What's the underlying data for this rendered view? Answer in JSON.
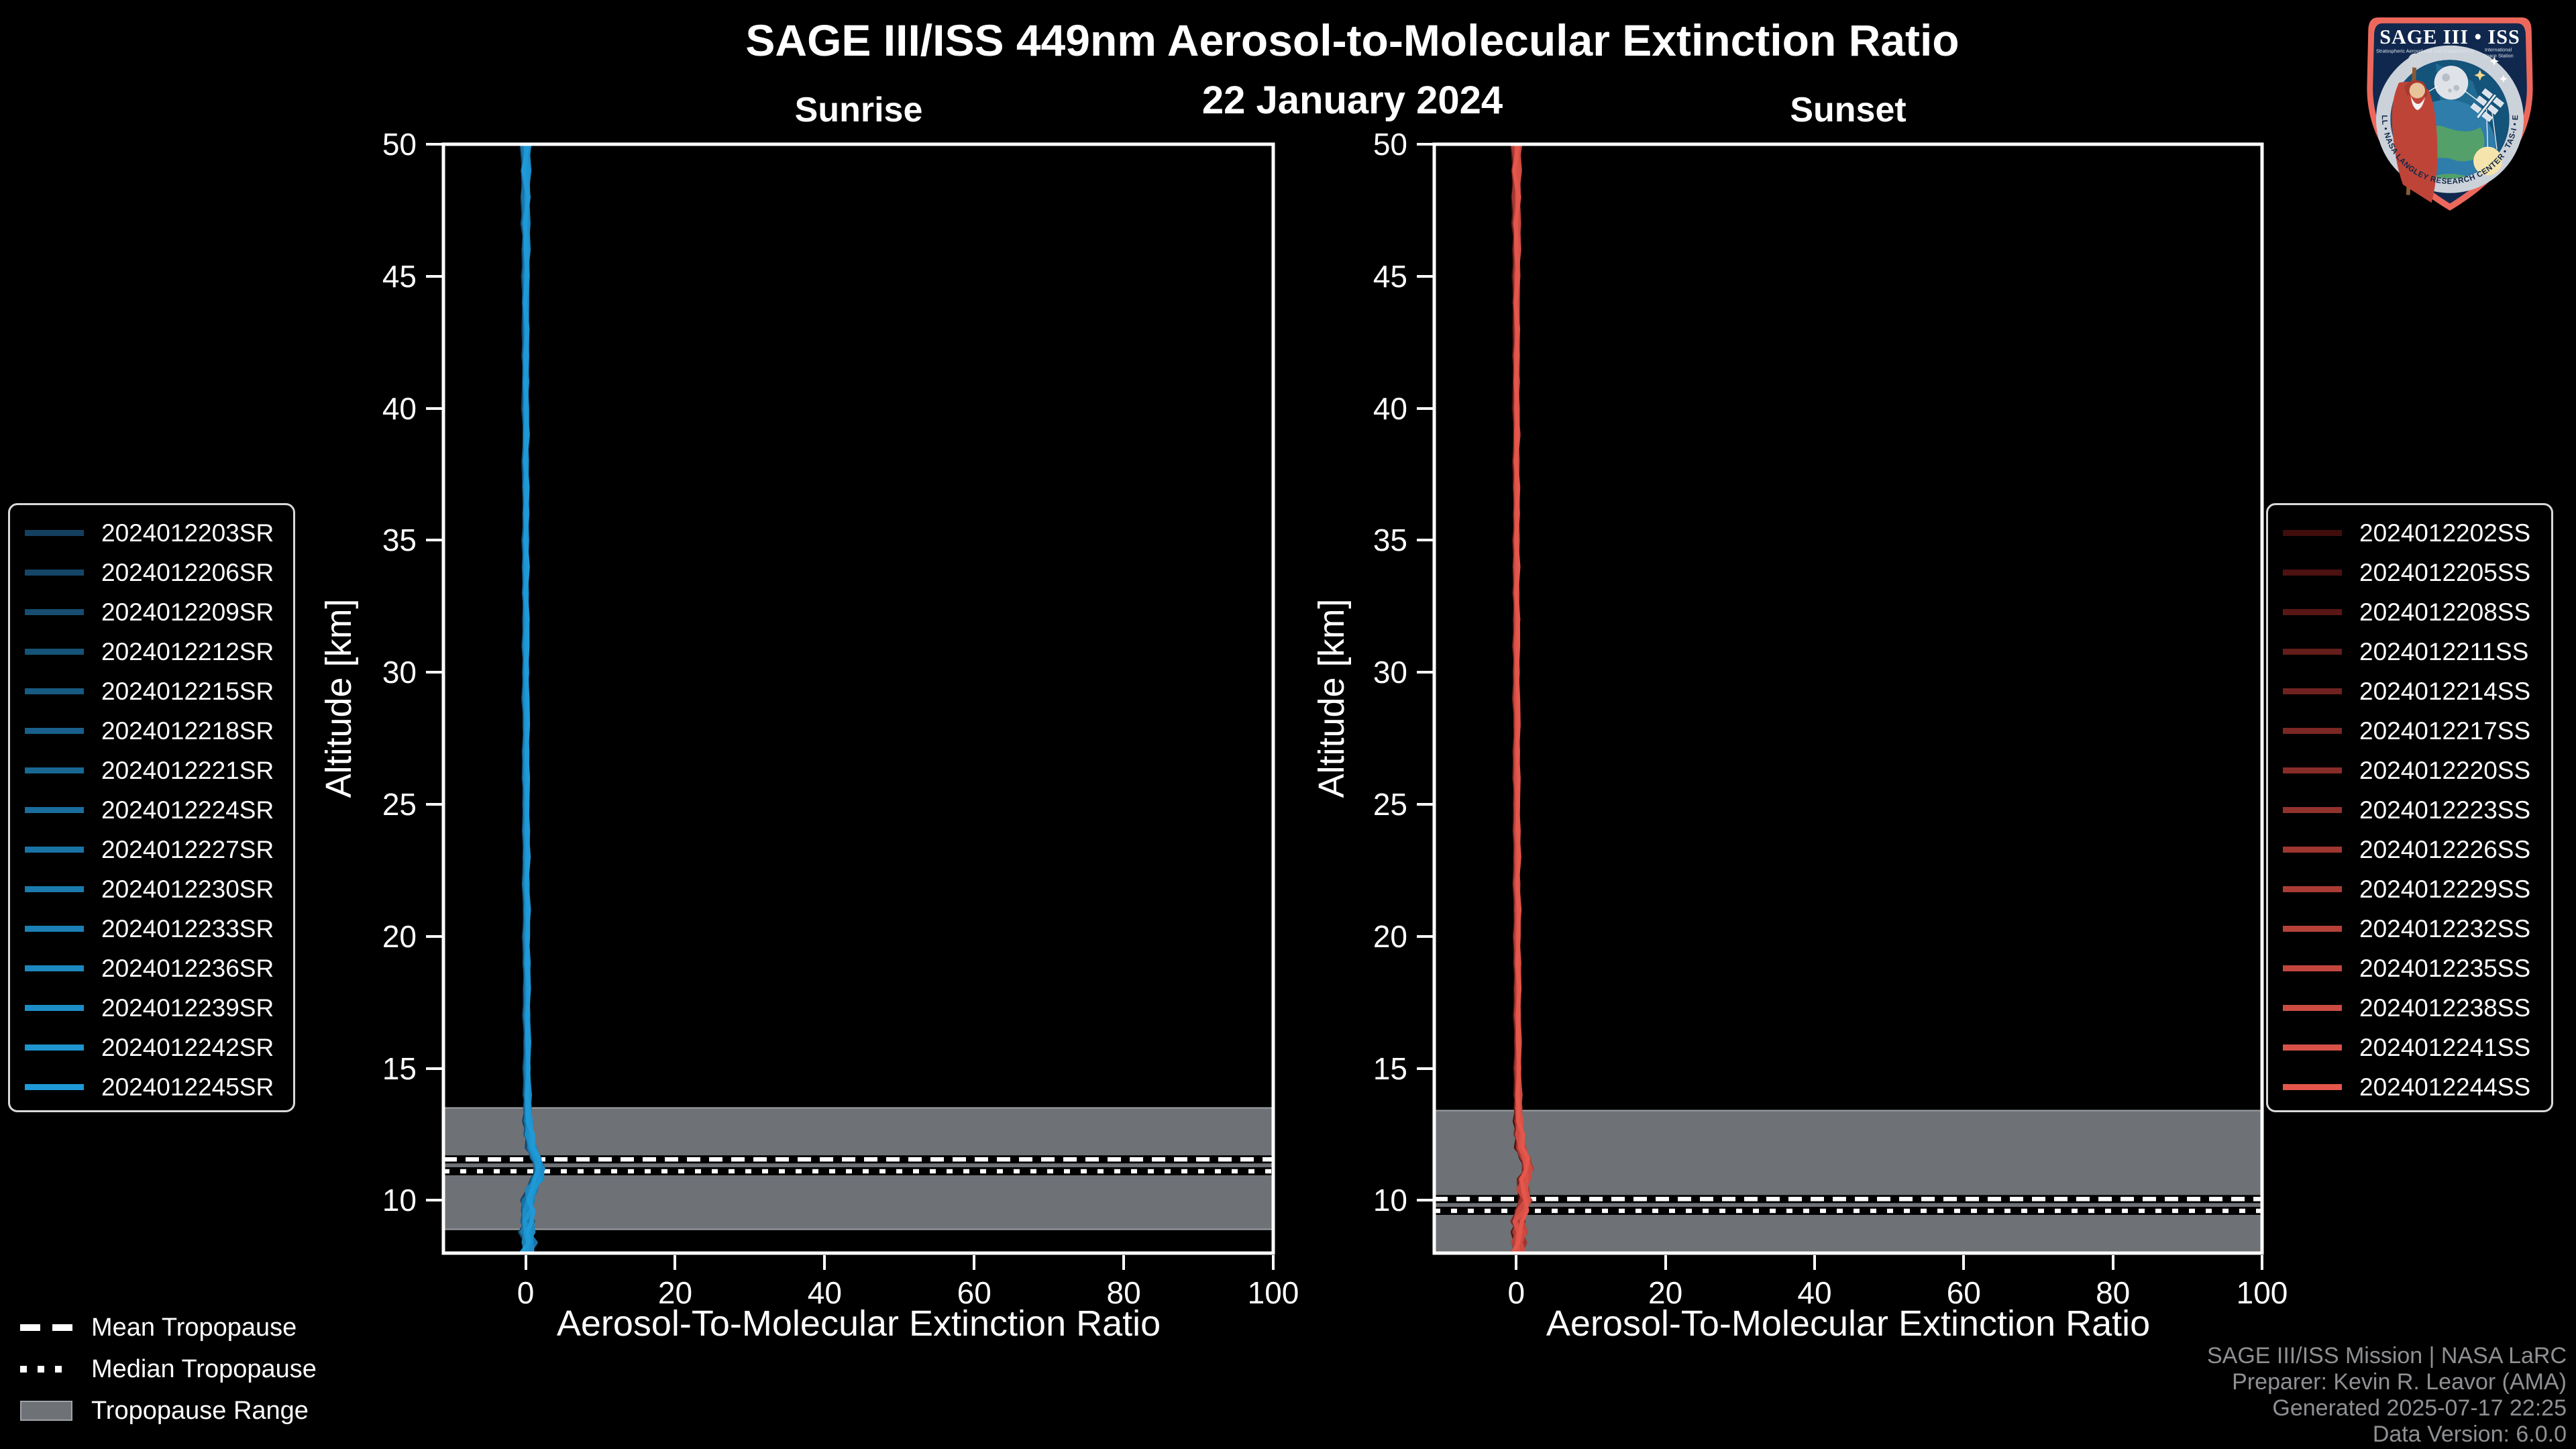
{
  "header": {
    "title": "SAGE III/ISS 449nm Aerosol-to-Molecular Extinction Ratio",
    "date": "22 January 2024"
  },
  "chart_data": {
    "type": "line",
    "title": "SAGE III/ISS 449nm Aerosol-to-Molecular Extinction Ratio",
    "subtitle": "22 January 2024",
    "xlabel": "Aerosol-To-Molecular Extinction Ratio",
    "ylabel": "Altitude [km]",
    "xlim": [
      -11,
      100
    ],
    "ylim": [
      8,
      50
    ],
    "xticks": [
      0,
      20,
      40,
      60,
      80,
      100
    ],
    "yticks": [
      10,
      15,
      20,
      25,
      30,
      35,
      40,
      45,
      50
    ],
    "grid": false,
    "plot_background": "#000000",
    "panels": [
      {
        "title": "Sunrise",
        "series_ids": [
          "2024012203SR",
          "2024012206SR",
          "2024012209SR",
          "2024012212SR",
          "2024012215SR",
          "2024012218SR",
          "2024012221SR",
          "2024012224SR",
          "2024012227SR",
          "2024012230SR",
          "2024012233SR",
          "2024012236SR",
          "2024012239SR",
          "2024012242SR",
          "2024012245SR"
        ],
        "series_color_start": "#14405f",
        "series_color_end": "#1f9ad9",
        "tropopause": {
          "mean_km": 11.55,
          "median_km": 11.1,
          "range_km": [
            8.9,
            13.5
          ]
        },
        "profile": {
          "altitude_km": [
            50,
            49,
            48,
            47,
            46,
            45,
            44,
            43,
            42,
            41,
            40,
            39,
            38,
            37,
            36,
            35,
            34,
            33,
            32,
            31,
            30,
            29,
            28,
            27,
            26,
            25,
            24,
            23,
            22,
            21,
            20,
            19,
            18,
            17,
            16,
            15,
            14,
            13.5,
            13,
            12.5,
            12,
            11.6,
            11.2,
            10.8,
            10.4,
            10,
            9.6,
            9.2,
            8.8,
            8.4,
            8
          ],
          "ratio": [
            0.15,
            0.1,
            0.2,
            0.1,
            0.25,
            0.15,
            0.1,
            0.2,
            0.1,
            0.15,
            0.1,
            0.2,
            0.1,
            0.15,
            0.2,
            0.1,
            0.15,
            0.1,
            0.2,
            0.1,
            0.15,
            0.1,
            0.2,
            0.15,
            0.1,
            0.2,
            0.15,
            0.2,
            0.15,
            0.25,
            0.2,
            0.25,
            0.3,
            0.25,
            0.35,
            0.3,
            0.35,
            0.4,
            0.45,
            0.6,
            0.9,
            1.5,
            2.1,
            1.6,
            0.9,
            0.5,
            0.3,
            0.5,
            0.35,
            0.55,
            0.4
          ]
        }
      },
      {
        "title": "Sunset",
        "series_ids": [
          "2024012202SS",
          "2024012205SS",
          "2024012208SS",
          "2024012211SS",
          "2024012214SS",
          "2024012217SS",
          "2024012220SS",
          "2024012223SS",
          "2024012226SS",
          "2024012229SS",
          "2024012232SS",
          "2024012235SS",
          "2024012238SS",
          "2024012241SS",
          "2024012244SS"
        ],
        "series_color_start": "#400d0d",
        "series_color_end": "#e5564b",
        "tropopause": {
          "mean_km": 10.05,
          "median_km": 9.6,
          "range_km": [
            8.0,
            13.4
          ]
        },
        "profile": {
          "altitude_km": [
            50,
            49,
            48,
            47,
            46,
            45,
            44,
            43,
            42,
            41,
            40,
            39,
            38,
            37,
            36,
            35,
            34,
            33,
            32,
            31,
            30,
            29,
            28,
            27,
            26,
            25,
            24,
            23,
            22,
            21,
            20,
            19,
            18,
            17,
            16,
            15,
            14,
            13.5,
            13,
            12.5,
            12,
            11.6,
            11.2,
            10.8,
            10.4,
            10,
            9.6,
            9.2,
            8.8,
            8.4,
            8
          ],
          "ratio": [
            0.15,
            0.1,
            0.2,
            0.1,
            0.25,
            0.15,
            0.1,
            0.2,
            0.1,
            0.15,
            0.1,
            0.2,
            0.1,
            0.15,
            0.2,
            0.1,
            0.15,
            0.1,
            0.2,
            0.1,
            0.15,
            0.1,
            0.2,
            0.15,
            0.1,
            0.2,
            0.15,
            0.2,
            0.15,
            0.25,
            0.2,
            0.25,
            0.3,
            0.25,
            0.35,
            0.3,
            0.35,
            0.4,
            0.45,
            0.55,
            0.7,
            1.3,
            1.8,
            1.1,
            1.0,
            1.4,
            0.7,
            0.45,
            0.6,
            0.4,
            0.5
          ]
        }
      }
    ],
    "legend_position": "outside-left-and-right"
  },
  "tropopause_legend": {
    "mean": "Mean Tropopause",
    "median": "Median Tropopause",
    "range": "Tropopause Range"
  },
  "attribution": {
    "line1": "SAGE III/ISS Mission | NASA LaRC",
    "line2": "Preparer: Kevin R. Leavor (AMA)",
    "line3": "Generated 2025-07-17 22:25",
    "line4": "Data Version: 6.0.0"
  },
  "logo": {
    "title": "SAGE III • ISS",
    "subtitle_left": "Stratospheric Aerosol and Gas Experiment III",
    "subtitle_right_1": "International",
    "subtitle_right_2": "Space Station",
    "rim_text": "BALL • NASA LANGLEY RESEARCH CENTER • TAS-I • ESA"
  },
  "colors": {
    "background": "#000000",
    "spine": "#ffffff",
    "tick_label": "#ffffff",
    "band": "#6e7176",
    "band_edge": "#9fa2a7",
    "mean_line": "#ffffff",
    "median_line": "#ffffff",
    "line_shadow": "#000000",
    "legend_border": "#d9d9d9",
    "attribution_text": "#8f9093"
  }
}
